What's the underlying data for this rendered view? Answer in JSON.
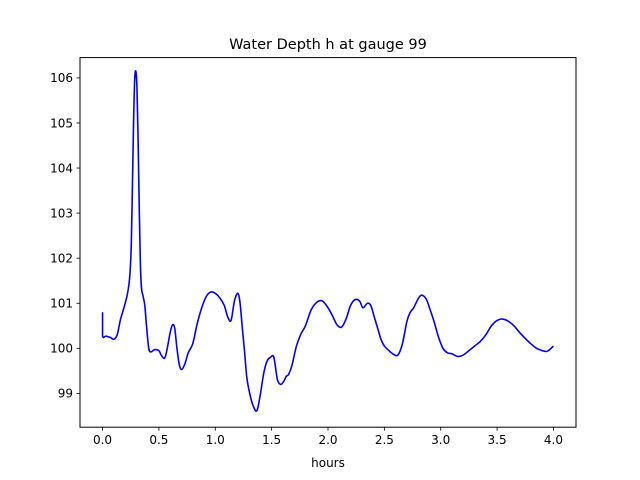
{
  "chart_data": {
    "type": "line",
    "title": "Water Depth h at gauge 99",
    "xlabel": "hours",
    "ylabel": "",
    "xlim": [
      -0.2,
      4.2
    ],
    "ylim": [
      98.25,
      106.45
    ],
    "xticks": [
      0.0,
      0.5,
      1.0,
      1.5,
      2.0,
      2.5,
      3.0,
      3.5,
      4.0
    ],
    "xtick_labels": [
      "0.0",
      "0.5",
      "1.0",
      "1.5",
      "2.0",
      "2.5",
      "3.0",
      "3.5",
      "4.0"
    ],
    "yticks": [
      99,
      100,
      101,
      102,
      103,
      104,
      105,
      106
    ],
    "ytick_labels": [
      "99",
      "100",
      "101",
      "102",
      "103",
      "104",
      "105",
      "106"
    ],
    "grid": false,
    "series": [
      {
        "color": "#0000ff",
        "x": [
          0.0,
          0.0,
          0.03,
          0.07,
          0.1,
          0.13,
          0.16,
          0.19,
          0.22,
          0.24,
          0.255,
          0.265,
          0.275,
          0.285,
          0.295,
          0.305,
          0.315,
          0.325,
          0.335,
          0.345,
          0.36,
          0.375,
          0.39,
          0.41,
          0.43,
          0.46,
          0.5,
          0.52,
          0.55,
          0.57,
          0.6,
          0.62,
          0.64,
          0.66,
          0.68,
          0.7,
          0.73,
          0.76,
          0.8,
          0.84,
          0.88,
          0.92,
          0.96,
          1.0,
          1.04,
          1.08,
          1.11,
          1.14,
          1.17,
          1.2,
          1.22,
          1.24,
          1.26,
          1.28,
          1.31,
          1.34,
          1.37,
          1.4,
          1.43,
          1.46,
          1.49,
          1.52,
          1.55,
          1.58,
          1.61,
          1.63,
          1.65,
          1.68,
          1.72,
          1.76,
          1.8,
          1.85,
          1.9,
          1.95,
          2.0,
          2.04,
          2.08,
          2.12,
          2.16,
          2.2,
          2.24,
          2.28,
          2.31,
          2.35,
          2.38,
          2.41,
          2.44,
          2.47,
          2.5,
          2.54,
          2.58,
          2.62,
          2.66,
          2.7,
          2.73,
          2.76,
          2.8,
          2.83,
          2.87,
          2.9,
          2.94,
          2.98,
          3.02,
          3.06,
          3.1,
          3.15,
          3.2,
          3.25,
          3.3,
          3.35,
          3.4,
          3.45,
          3.5,
          3.55,
          3.6,
          3.65,
          3.7,
          3.75,
          3.8,
          3.85,
          3.9,
          3.94,
          3.97,
          4.0
        ],
        "y": [
          100.8,
          100.28,
          100.27,
          100.24,
          100.2,
          100.3,
          100.65,
          100.9,
          101.2,
          101.55,
          102.3,
          103.6,
          105.0,
          105.95,
          106.15,
          105.8,
          104.7,
          103.2,
          101.95,
          101.35,
          101.15,
          100.95,
          100.5,
          100.0,
          99.92,
          99.97,
          99.95,
          99.85,
          99.78,
          99.95,
          100.35,
          100.52,
          100.45,
          100.0,
          99.65,
          99.53,
          99.65,
          99.9,
          100.1,
          100.55,
          100.9,
          101.15,
          101.25,
          101.22,
          101.12,
          100.95,
          100.7,
          100.62,
          101.05,
          101.22,
          101.0,
          100.45,
          99.92,
          99.35,
          98.95,
          98.7,
          98.62,
          98.98,
          99.45,
          99.72,
          99.8,
          99.8,
          99.32,
          99.2,
          99.28,
          99.38,
          99.42,
          99.62,
          100.05,
          100.32,
          100.5,
          100.85,
          101.02,
          101.05,
          100.9,
          100.72,
          100.52,
          100.47,
          100.65,
          100.95,
          101.08,
          101.05,
          100.9,
          101.0,
          100.95,
          100.7,
          100.45,
          100.2,
          100.05,
          99.95,
          99.87,
          99.85,
          100.1,
          100.6,
          100.8,
          100.9,
          101.1,
          101.18,
          101.1,
          100.9,
          100.6,
          100.25,
          100.0,
          99.9,
          99.88,
          99.82,
          99.85,
          99.95,
          100.05,
          100.15,
          100.3,
          100.5,
          100.62,
          100.65,
          100.6,
          100.5,
          100.35,
          100.22,
          100.1,
          100.0,
          99.95,
          99.93,
          99.98,
          100.05
        ]
      }
    ]
  }
}
